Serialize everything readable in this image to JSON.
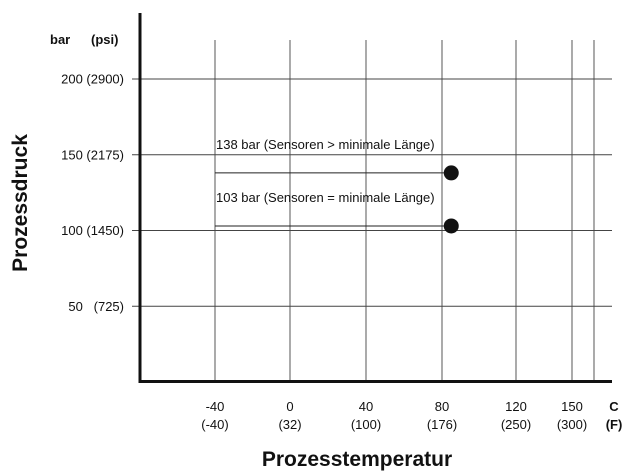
{
  "chart_data": {
    "type": "line",
    "xlabel": "Prozesstemperatur",
    "ylabel": "Prozessdruck",
    "x_unit_primary": "C",
    "x_unit_secondary": "(F)",
    "y_unit_primary": "bar",
    "y_unit_secondary": "(psi)",
    "x_ticks": [
      {
        "value": -40,
        "label": "-40",
        "label2": "(-40)"
      },
      {
        "value": 0,
        "label": "0",
        "label2": "(32)"
      },
      {
        "value": 40,
        "label": "40",
        "label2": "(100)"
      },
      {
        "value": 80,
        "label": "80",
        "label2": "(176)"
      },
      {
        "value": 120,
        "label": "120",
        "label2": "(250)"
      },
      {
        "value": 150,
        "label": "150",
        "label2": "(300)"
      }
    ],
    "x_extra_gridlines": [
      162
    ],
    "y_ticks": [
      {
        "value": 50,
        "label": "50   (725)"
      },
      {
        "value": 100,
        "label": "100 (1450)"
      },
      {
        "value": 150,
        "label": "150 (2175)"
      },
      {
        "value": 200,
        "label": "200 (2900)"
      }
    ],
    "xlim": [
      -80,
      170
    ],
    "ylim": [
      0,
      245
    ],
    "series": [
      {
        "name": "138 bar (Sensoren > minimale Länge)",
        "x": [
          -40,
          85
        ],
        "y": [
          138,
          138
        ],
        "end_marker": "dot"
      },
      {
        "name": "103 bar (Sensoren = minimale Länge)",
        "x": [
          -40,
          85
        ],
        "y": [
          103,
          103
        ],
        "end_marker": "dot"
      }
    ],
    "grid": true,
    "legend": "none"
  }
}
